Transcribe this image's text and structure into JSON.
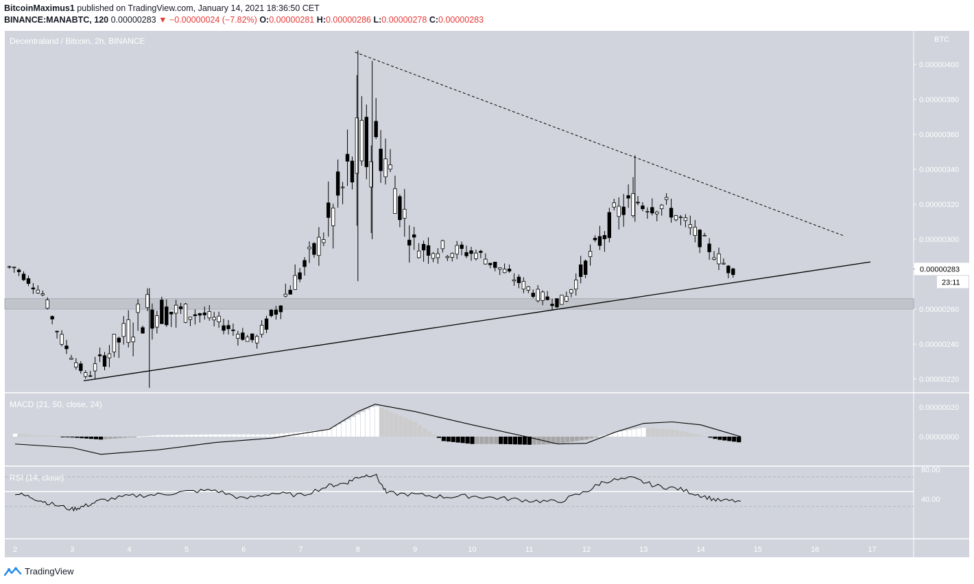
{
  "header": {
    "author": "BitcoinMaximus1",
    "published_text": "published on TradingView.com, January 14, 2021 18:36:50 CET",
    "symbol": "BINANCE:MANABTC, 120",
    "last": "0.00000283",
    "change": "▼ −0.00000024 (−7.82%)",
    "o_label": "O:",
    "o": "0.00000281",
    "h_label": "H:",
    "h": "0.00000286",
    "l_label": "L:",
    "l": "0.00000278",
    "c_label": "C:",
    "c": "0.00000283"
  },
  "main_pane": {
    "title": "Decentraland / Bitcoin, 2h, BINANCE",
    "unit": "BTC",
    "price_ticks": [
      "0.00000400",
      "0.00000380",
      "0.00000360",
      "0.00000340",
      "0.00000320",
      "0.00000300",
      "0.00000260",
      "0.00000240",
      "0.00000220"
    ],
    "last_price_label": "0.00000283",
    "countdown": "23:11"
  },
  "macd_pane": {
    "title": "MACD (21, 50, close, 24)",
    "ticks": [
      "0.00000020",
      "0.00000000"
    ]
  },
  "rsi_pane": {
    "title": "RSI (14, close)",
    "ticks": [
      "80.00",
      "40.00"
    ]
  },
  "x_axis": {
    "labels": [
      "2",
      "3",
      "4",
      "5",
      "6",
      "7",
      "8",
      "9",
      "10",
      "11",
      "12",
      "13",
      "14",
      "15",
      "16",
      "17"
    ]
  },
  "footer": {
    "brand": "TradingView"
  },
  "colors": {
    "background": "#d1d4dc",
    "up_candle": "#ffffff",
    "down_candle": "#000000",
    "accent_red": "#e53935",
    "macd_up": "#ffffff",
    "macd_down_fading": "#a6a6a6",
    "macd_down": "#000000",
    "macd_up_fading": "#cccccc"
  },
  "chart_data": [
    {
      "type": "candlestick",
      "title": "Decentraland / Bitcoin, 2h, BINANCE",
      "x_unit": "day (January 2021)",
      "ylim": [
        2.15e-06,
        4.1e-06
      ],
      "ohlc_sampled": [
        {
          "day": 2.0,
          "open": 2.86e-06,
          "high": 2.9e-06,
          "low": 2.77e-06,
          "close": 2.82e-06
        },
        {
          "day": 2.5,
          "open": 2.7e-06,
          "high": 2.73e-06,
          "low": 2.62e-06,
          "close": 2.66e-06
        },
        {
          "day": 2.8,
          "open": 2.46e-06,
          "high": 2.56e-06,
          "low": 2.36e-06,
          "close": 2.4e-06
        },
        {
          "day": 3.25,
          "open": 2.22e-06,
          "high": 2.3e-06,
          "low": 2.18e-06,
          "close": 2.2e-06
        },
        {
          "day": 4.3,
          "open": 2.58e-06,
          "high": 2.72e-06,
          "low": 2.15e-06,
          "close": 2.62e-06
        },
        {
          "day": 5.3,
          "open": 2.54e-06,
          "high": 2.65e-06,
          "low": 2.49e-06,
          "close": 2.6e-06
        },
        {
          "day": 6.2,
          "open": 2.38e-06,
          "high": 2.5e-06,
          "low": 2.33e-06,
          "close": 2.45e-06
        },
        {
          "day": 7.3,
          "open": 2.92e-06,
          "high": 3.22e-06,
          "low": 2.85e-06,
          "close": 3e-06
        },
        {
          "day": 8.0,
          "open": 3.3e-06,
          "high": 4.08e-06,
          "low": 2.76e-06,
          "close": 3.62e-06
        },
        {
          "day": 8.38,
          "open": 3.7e-06,
          "high": 4.02e-06,
          "low": 3.1e-06,
          "close": 3.4e-06
        },
        {
          "day": 9.0,
          "open": 3.02e-06,
          "high": 3.12e-06,
          "low": 2.82e-06,
          "close": 2.9e-06
        },
        {
          "day": 10.1,
          "open": 2.9e-06,
          "high": 2.96e-06,
          "low": 2.78e-06,
          "close": 2.94e-06
        },
        {
          "day": 11.2,
          "open": 2.66e-06,
          "high": 2.75e-06,
          "low": 2.6e-06,
          "close": 2.68e-06
        },
        {
          "day": 11.6,
          "open": 2.62e-06,
          "high": 2.76e-06,
          "low": 2.59e-06,
          "close": 2.66e-06
        },
        {
          "day": 12.5,
          "open": 3.1e-06,
          "high": 3.24e-06,
          "low": 2.88e-06,
          "close": 3.18e-06
        },
        {
          "day": 12.85,
          "open": 3.18e-06,
          "high": 3.48e-06,
          "low": 3.1e-06,
          "close": 3.26e-06
        },
        {
          "day": 13.4,
          "open": 3.14e-06,
          "high": 3.3e-06,
          "low": 3.06e-06,
          "close": 3.24e-06
        },
        {
          "day": 14.0,
          "open": 3.06e-06,
          "high": 3.12e-06,
          "low": 2.9e-06,
          "close": 2.94e-06
        },
        {
          "day": 14.5,
          "open": 2.86e-06,
          "high": 2.9e-06,
          "low": 2.75e-06,
          "close": 2.79e-06
        },
        {
          "day": 14.62,
          "open": 2.81e-06,
          "high": 2.86e-06,
          "low": 2.78e-06,
          "close": 2.83e-06
        }
      ],
      "annotations": {
        "descending_resistance": [
          {
            "day": 7.95,
            "price": 4.07e-06
          },
          {
            "day": 16.5,
            "price": 3.02e-06
          }
        ],
        "ascending_support": [
          {
            "day": 3.2,
            "price": 2.19e-06
          },
          {
            "day": 16.97,
            "price": 2.87e-06
          }
        ],
        "horizontal_zone": [
          2.6e-06,
          2.66e-06
        ]
      }
    },
    {
      "type": "bar",
      "title": "MACD (21, 50, close, 24)",
      "series": [
        {
          "name": "histogram",
          "x": [
            2.0,
            2.8,
            3.5,
            4.5,
            5.5,
            6.5,
            7.5,
            8.3,
            9.0,
            9.5,
            10.0,
            10.5,
            11.0,
            11.5,
            12.0,
            12.5,
            13.0,
            13.5,
            14.0,
            14.3,
            14.7
          ],
          "values": [
            2e-08,
            0.0,
            -2e-08,
            1e-08,
            1.5e-08,
            1.5e-08,
            5e-08,
            2.1e-07,
            1e-07,
            -3e-08,
            -5e-08,
            -5e-08,
            -5.5e-08,
            -5e-08,
            -2e-08,
            3e-08,
            6e-08,
            5e-08,
            1e-08,
            -2e-08,
            -4e-08
          ]
        },
        {
          "name": "signal",
          "x": [
            2.0,
            3.0,
            3.5,
            4.5,
            5.5,
            6.5,
            7.5,
            8.0,
            8.3,
            9.0,
            10.0,
            11.0,
            11.5,
            12.0,
            12.5,
            13.0,
            13.5,
            14.0,
            14.7
          ],
          "values": [
            -5e-08,
            -7.5e-08,
            -1.2e-07,
            -9e-08,
            -4e-08,
            -1e-08,
            5e-08,
            1.7e-07,
            2.2e-07,
            1.7e-07,
            8e-08,
            -5e-09,
            -5e-08,
            -4.5e-08,
            3e-08,
            9e-08,
            1e-07,
            8e-08,
            0.0
          ]
        }
      ]
    },
    {
      "type": "line",
      "title": "RSI (14, close)",
      "ylim": [
        15,
        95
      ],
      "series": [
        {
          "name": "RSI",
          "x": [
            2.0,
            2.3,
            2.6,
            3.0,
            3.2,
            3.5,
            4.0,
            4.5,
            5.0,
            5.5,
            6.0,
            6.5,
            7.0,
            7.5,
            7.8,
            8.0,
            8.3,
            8.5,
            9.0,
            9.5,
            10.0,
            10.5,
            11.0,
            11.5,
            12.0,
            12.3,
            12.8,
            13.2,
            13.6,
            14.0,
            14.3,
            14.7
          ],
          "values": [
            48,
            42,
            34,
            26,
            30,
            38,
            44,
            46,
            50,
            52,
            40,
            48,
            45,
            58,
            62,
            70,
            74,
            48,
            46,
            43,
            44,
            41,
            38,
            36,
            50,
            64,
            68,
            58,
            54,
            45,
            38,
            37
          ]
        }
      ],
      "reference_lines": [
        70,
        50,
        30
      ]
    }
  ]
}
